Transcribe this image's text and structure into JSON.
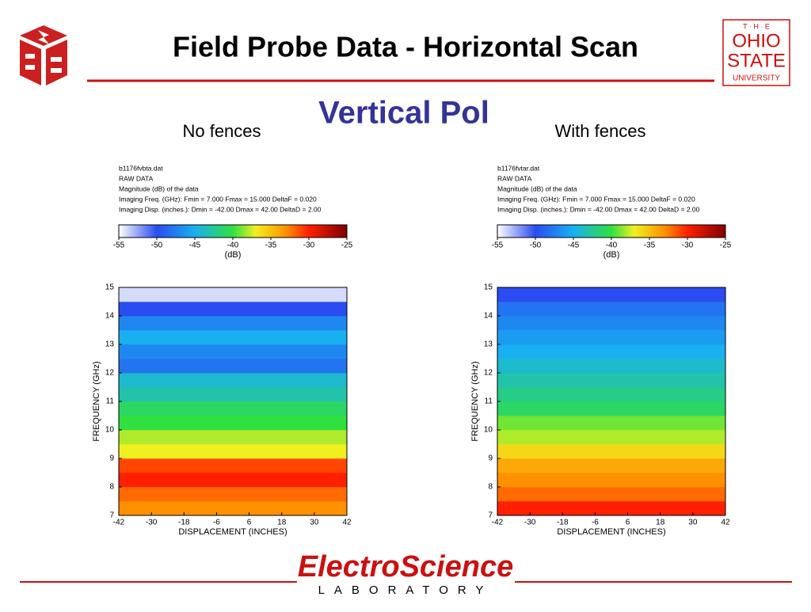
{
  "header": {
    "title": "Field Probe Data - Horizontal Scan",
    "subtitle": "Vertical Pol",
    "university": [
      "T · H · E",
      "OHIO",
      "STATE",
      "UNIVERSITY"
    ],
    "lab": "ElectroScience",
    "lab_sub": "LABORATORY"
  },
  "chart_data": [
    {
      "type": "heatmap",
      "label": "No fences",
      "info": [
        "b1176fvbta.dat",
        "RAW DATA",
        "Magnitude (dB) of the data",
        "Imaging Freq. (GHz):  Fmin = 7.000   Fmax = 15.000   DeltaF = 0.020",
        "Imaging Disp. (inches.):  Dmin = -42.00   Dmax = 42.00   DeltaD = 2.00"
      ],
      "xlabel": "DISPLACEMENT (INCHES)",
      "ylabel": "FREQUENCY (GHz)",
      "colorbar_label": "(dB)",
      "xlim": [
        -42,
        42
      ],
      "xticks": [
        -42,
        -30,
        -18,
        -6,
        6,
        18,
        30,
        42
      ],
      "ylim": [
        7,
        15
      ],
      "yticks": [
        7,
        8,
        9,
        10,
        11,
        12,
        13,
        14,
        15
      ],
      "clim": [
        -55,
        -25
      ],
      "cticks": [
        -55,
        -50,
        -45,
        -40,
        -35,
        -30,
        -25
      ],
      "colorscale": [
        [
          -55,
          "#ffffff"
        ],
        [
          -50,
          "#2a4cf0"
        ],
        [
          -45,
          "#18b0f0"
        ],
        [
          -40,
          "#30e040"
        ],
        [
          -37,
          "#f0f020"
        ],
        [
          -33,
          "#ff9000"
        ],
        [
          -30,
          "#ff2000"
        ],
        [
          -25,
          "#800000"
        ]
      ],
      "ybins": [
        7,
        7.5,
        8,
        8.5,
        9,
        9.5,
        10,
        10.5,
        11,
        11.5,
        12,
        12.5,
        13,
        13.5,
        14,
        14.5,
        15
      ],
      "values": [
        -33,
        -32,
        -30,
        -31,
        -37,
        -38,
        -40,
        -41,
        -43,
        -44,
        -48,
        -47,
        -45,
        -47,
        -50,
        -54
      ]
    },
    {
      "type": "heatmap",
      "label": "With fences",
      "info": [
        "b1176fvtar.dat",
        "RAW DATA",
        "Magnitude (dB) of the data",
        "Imaging Freq. (GHz):  Fmin = 7.000   Fmax = 15.000   DeltaF = 0.020",
        "Imaging Disp. (inches.):  Dmin = -42.00   Dmax = 42.00   DeltaD = 2.00"
      ],
      "xlabel": "DISPLACEMENT (INCHES)",
      "ylabel": "FREQUENCY (GHz)",
      "colorbar_label": "(dB)",
      "xlim": [
        -42,
        42
      ],
      "xticks": [
        -42,
        -30,
        -18,
        -6,
        6,
        18,
        30,
        42
      ],
      "ylim": [
        7,
        15
      ],
      "yticks": [
        7,
        8,
        9,
        10,
        11,
        12,
        13,
        14,
        15
      ],
      "clim": [
        -55,
        -25
      ],
      "cticks": [
        -55,
        -50,
        -45,
        -40,
        -35,
        -30,
        -25
      ],
      "colorscale": [
        [
          -55,
          "#ffffff"
        ],
        [
          -50,
          "#2a4cf0"
        ],
        [
          -45,
          "#18b0f0"
        ],
        [
          -40,
          "#30e040"
        ],
        [
          -37,
          "#f0f020"
        ],
        [
          -33,
          "#ff9000"
        ],
        [
          -30,
          "#ff2000"
        ],
        [
          -25,
          "#800000"
        ]
      ],
      "ybins": [
        7,
        7.5,
        8,
        8.5,
        9,
        9.5,
        10,
        10.5,
        11,
        11.5,
        12,
        12.5,
        13,
        13.5,
        14,
        14.5,
        15
      ],
      "values": [
        -30,
        -32,
        -33,
        -34,
        -36,
        -38,
        -39,
        -41,
        -42,
        -43,
        -44,
        -45,
        -46,
        -47,
        -48,
        -50
      ]
    }
  ]
}
